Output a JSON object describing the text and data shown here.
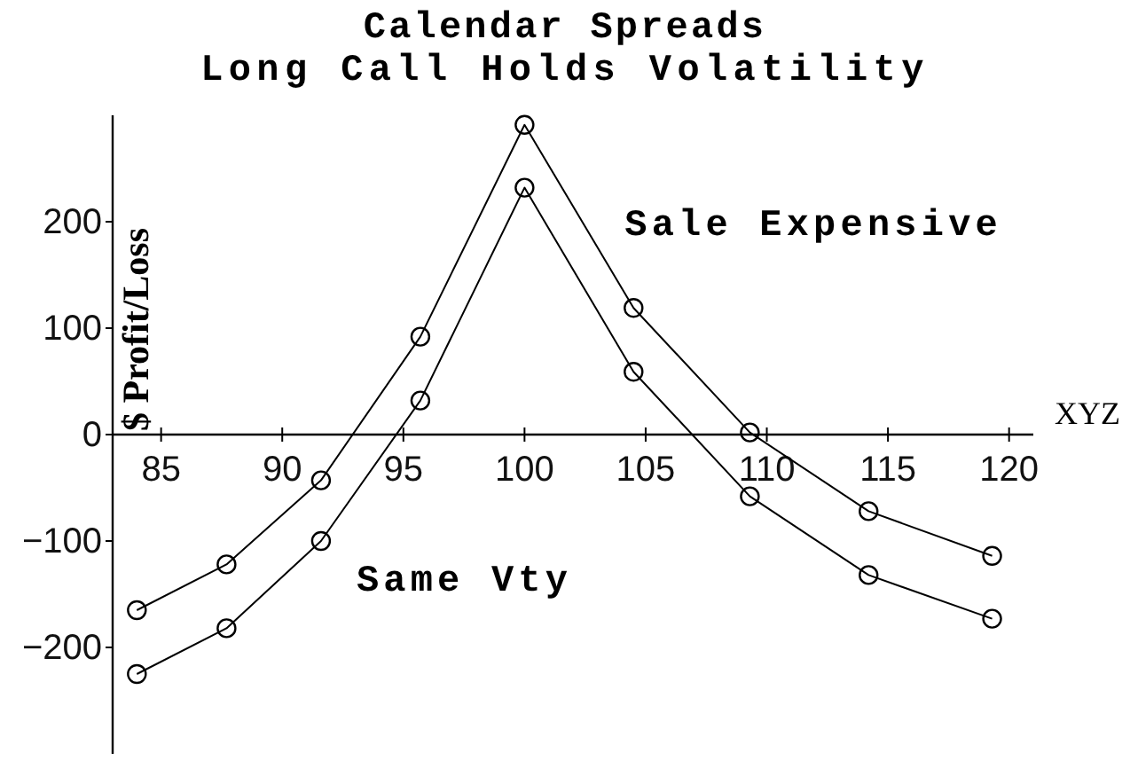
{
  "chart_data": {
    "type": "line",
    "title": "Calendar Spreads",
    "subtitle": "Long Call Holds Volatility",
    "xlabel": "XYZ",
    "ylabel": "$ Profit/Loss",
    "x": [
      84,
      87.7,
      91.6,
      95.7,
      100,
      104.5,
      109.3,
      114.2,
      119.3
    ],
    "series": [
      {
        "name": "Sale Expensive",
        "color": "#000000",
        "values": [
          -165,
          -122,
          -43,
          92,
          291,
          119,
          2,
          -72,
          -114
        ]
      },
      {
        "name": "Same Vty",
        "color": "#000000",
        "values": [
          -225,
          -182,
          -100,
          32,
          232,
          59,
          -58,
          -132,
          -173
        ]
      }
    ],
    "xlim": [
      83,
      121
    ],
    "ylim": [
      -300,
      300
    ],
    "xticks": [
      85,
      90,
      95,
      100,
      105,
      110,
      115,
      120
    ],
    "yticks": [
      -200,
      -100,
      0,
      100,
      200
    ],
    "marker": "circle",
    "line_style": "solid"
  }
}
